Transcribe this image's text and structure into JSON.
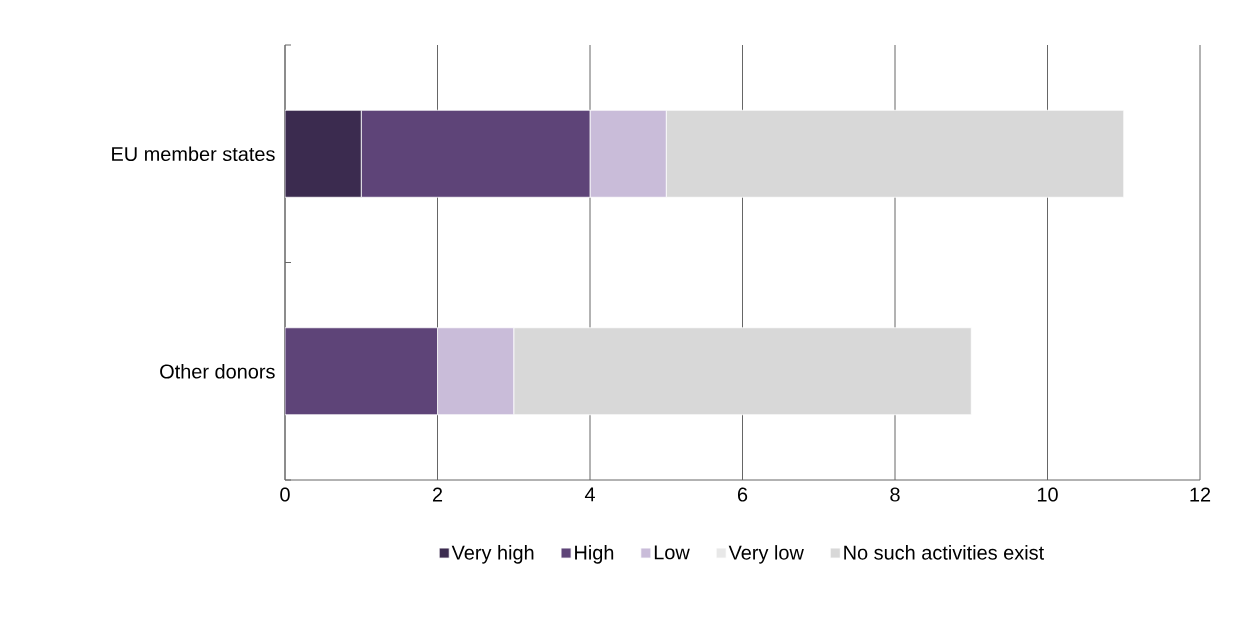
{
  "chart_data": {
    "type": "bar",
    "orientation": "horizontal",
    "stacked": true,
    "categories": [
      "EU member states",
      "Other donors"
    ],
    "series": [
      {
        "name": "Very high",
        "color": "#3b2b4f",
        "values": [
          1,
          0
        ]
      },
      {
        "name": "High",
        "color": "#5e4478",
        "values": [
          3,
          2
        ]
      },
      {
        "name": "Low",
        "color": "#c9bcd9",
        "values": [
          1,
          1
        ]
      },
      {
        "name": "Very low",
        "color": "#e8e8e8",
        "values": [
          0,
          0
        ]
      },
      {
        "name": "No such activities exist",
        "color": "#d8d8d8",
        "values": [
          6,
          6
        ]
      }
    ],
    "xlim": [
      0,
      12
    ],
    "xticks": [
      0,
      2,
      4,
      6,
      8,
      10,
      12
    ],
    "grid": "x",
    "legend": "bottom"
  }
}
